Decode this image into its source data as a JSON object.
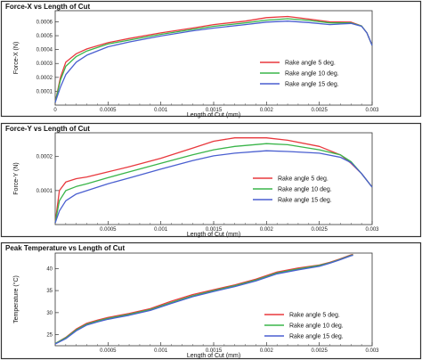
{
  "chart_data": [
    {
      "type": "line",
      "title": "Force-X vs Length of Cut",
      "xlabel": "Length of Cut (mm)",
      "ylabel": "Force-X (N)",
      "xlim": [
        0,
        0.003
      ],
      "ylim": [
        0,
        0.00068
      ],
      "xticks": [
        {
          "v": 0,
          "label": "0"
        },
        {
          "v": 0.0005,
          "label": "0.0005"
        },
        {
          "v": 0.001,
          "label": "0.001"
        },
        {
          "v": 0.0015,
          "label": "0.0015"
        },
        {
          "v": 0.002,
          "label": "0.002"
        },
        {
          "v": 0.0025,
          "label": "0.0025"
        },
        {
          "v": 0.003,
          "label": "0.003"
        }
      ],
      "yticks": [
        {
          "v": 0.0001,
          "label": "0.0001"
        },
        {
          "v": 0.0002,
          "label": "0.0002"
        },
        {
          "v": 0.0003,
          "label": "0.0003"
        },
        {
          "v": 0.0004,
          "label": "0.0004"
        },
        {
          "v": 0.0005,
          "label": "0.0005"
        },
        {
          "v": 0.0006,
          "label": "0.0006"
        }
      ],
      "legend_position": "center-right",
      "series": [
        {
          "name": "Rake angle 5 deg.",
          "color": "#e8383d",
          "x": [
            0,
            5e-05,
            0.0001,
            0.0002,
            0.0003,
            0.0005,
            0.0007,
            0.001,
            0.0013,
            0.0015,
            0.0018,
            0.002,
            0.0022,
            0.0024,
            0.0026,
            0.0028,
            0.0029,
            0.00295,
            0.003
          ],
          "y": [
            2e-05,
            0.0002,
            0.00031,
            0.00037,
            0.000405,
            0.00045,
            0.00048,
            0.00052,
            0.000555,
            0.00058,
            0.000605,
            0.00063,
            0.000638,
            0.00062,
            0.0006,
            0.000598,
            0.00057,
            0.00052,
            0.00043
          ]
        },
        {
          "name": "Rake angle 10 deg.",
          "color": "#3ab54a",
          "x": [
            0,
            5e-05,
            0.0001,
            0.0002,
            0.0003,
            0.0005,
            0.0007,
            0.001,
            0.0013,
            0.0015,
            0.0018,
            0.002,
            0.0022,
            0.0024,
            0.0026,
            0.0028,
            0.0029,
            0.00295,
            0.003
          ],
          "y": [
            2e-05,
            0.00018,
            0.00028,
            0.00035,
            0.00039,
            0.00044,
            0.000468,
            0.00051,
            0.000545,
            0.000568,
            0.000592,
            0.000612,
            0.000622,
            0.00061,
            0.000592,
            0.000592,
            0.00057,
            0.00052,
            0.00043
          ]
        },
        {
          "name": "Rake angle 15 deg.",
          "color": "#4a5fd0",
          "x": [
            0,
            5e-05,
            0.0001,
            0.0002,
            0.0003,
            0.0005,
            0.0007,
            0.001,
            0.0013,
            0.0015,
            0.0018,
            0.002,
            0.0022,
            0.0024,
            0.0026,
            0.0028,
            0.0029,
            0.00295,
            0.003
          ],
          "y": [
            2e-05,
            0.00013,
            0.00022,
            0.00031,
            0.00036,
            0.00042,
            0.000455,
            0.000498,
            0.000535,
            0.000555,
            0.00058,
            0.000598,
            0.000605,
            0.000595,
            0.00058,
            0.000588,
            0.000568,
            0.00052,
            0.00043
          ]
        }
      ]
    },
    {
      "type": "line",
      "title": "Force-Y vs Length of Cut",
      "xlabel": "Length of Cut (mm)",
      "ylabel": "Force-Y (N)",
      "xlim": [
        0,
        0.003
      ],
      "ylim": [
        0,
        0.00027
      ],
      "xticks": [
        {
          "v": 0.0005,
          "label": "0.0005"
        },
        {
          "v": 0.001,
          "label": "0.001"
        },
        {
          "v": 0.0015,
          "label": "0.0015"
        },
        {
          "v": 0.002,
          "label": "0.002"
        },
        {
          "v": 0.0025,
          "label": "0.0025"
        },
        {
          "v": 0.003,
          "label": "0.003"
        }
      ],
      "yticks": [
        {
          "v": 0.0001,
          "label": "0.0001"
        },
        {
          "v": 0.0002,
          "label": "0.0002"
        }
      ],
      "legend_position": "center-right",
      "series": [
        {
          "name": "Rake angle 5 deg.",
          "color": "#e8383d",
          "x": [
            0,
            4e-05,
            0.0001,
            0.0002,
            0.0003,
            0.0005,
            0.0007,
            0.001,
            0.0013,
            0.0015,
            0.0017,
            0.002,
            0.0022,
            0.0025,
            0.0027,
            0.0028,
            0.0029,
            0.003
          ],
          "y": [
            5e-06,
            0.0001,
            0.000125,
            0.000135,
            0.00014,
            0.000155,
            0.00017,
            0.000195,
            0.000225,
            0.000245,
            0.000255,
            0.000255,
            0.000248,
            0.00023,
            0.000205,
            0.00018,
            0.00015,
            0.00011
          ]
        },
        {
          "name": "Rake angle 10 deg.",
          "color": "#3ab54a",
          "x": [
            0,
            4e-05,
            0.0001,
            0.0002,
            0.0003,
            0.0005,
            0.0007,
            0.001,
            0.0013,
            0.0015,
            0.0017,
            0.002,
            0.0022,
            0.0025,
            0.0027,
            0.0028,
            0.0029,
            0.003
          ],
          "y": [
            5e-06,
            7e-05,
            0.0001,
            0.000112,
            0.00012,
            0.000138,
            0.000155,
            0.00018,
            0.000205,
            0.00022,
            0.00023,
            0.000238,
            0.000235,
            0.00022,
            0.000205,
            0.000185,
            0.00015,
            0.00011
          ]
        },
        {
          "name": "Rake angle 15 deg.",
          "color": "#4a5fd0",
          "x": [
            0,
            4e-05,
            0.0001,
            0.0002,
            0.0003,
            0.0005,
            0.0007,
            0.001,
            0.0013,
            0.0015,
            0.0017,
            0.002,
            0.0022,
            0.0025,
            0.0027,
            0.0028,
            0.0029,
            0.003
          ],
          "y": [
            5e-06,
            4e-05,
            7e-05,
            9e-05,
            0.0001,
            0.00012,
            0.000137,
            0.000163,
            0.000188,
            0.000202,
            0.00021,
            0.000217,
            0.000215,
            0.00021,
            0.000198,
            0.000182,
            0.00015,
            0.00011
          ]
        }
      ]
    },
    {
      "type": "line",
      "title": "Peak Temperature vs Length of Cut",
      "xlabel": "Length of Cut (mm)",
      "ylabel": "Temperature (°C)",
      "xlim": [
        0,
        0.003
      ],
      "ylim": [
        22.5,
        43.5
      ],
      "xticks": [
        {
          "v": 0.0005,
          "label": "0.0005"
        },
        {
          "v": 0.001,
          "label": "0.001"
        },
        {
          "v": 0.0015,
          "label": "0.0015"
        },
        {
          "v": 0.002,
          "label": "0.002"
        },
        {
          "v": 0.0025,
          "label": "0.0025"
        },
        {
          "v": 0.003,
          "label": "0.003"
        }
      ],
      "yticks": [
        {
          "v": 25,
          "label": "25"
        },
        {
          "v": 30,
          "label": "30"
        },
        {
          "v": 35,
          "label": "35"
        },
        {
          "v": 40,
          "label": "40"
        }
      ],
      "legend_position": "bottom-right",
      "series": [
        {
          "name": "Rake angle 5 deg.",
          "color": "#e8383d",
          "x": [
            0,
            0.0001,
            0.0002,
            0.0003,
            0.0004,
            0.0005,
            0.0007,
            0.0009,
            0.0011,
            0.0013,
            0.0015,
            0.0017,
            0.0019,
            0.0021,
            0.0023,
            0.0025,
            0.0026,
            0.0027,
            0.0028,
            0.00282
          ],
          "y": [
            23,
            24.4,
            26.3,
            27.6,
            28.3,
            28.9,
            29.8,
            30.9,
            32.6,
            34.1,
            35.2,
            36.3,
            37.6,
            39.2,
            40.1,
            40.8,
            41.4,
            42.2,
            43.1,
            43.2
          ]
        },
        {
          "name": "Rake angle 10 deg.",
          "color": "#3ab54a",
          "x": [
            0,
            0.0001,
            0.0002,
            0.0003,
            0.0004,
            0.0005,
            0.0007,
            0.0009,
            0.0011,
            0.0013,
            0.0015,
            0.0017,
            0.0019,
            0.0021,
            0.0023,
            0.0025,
            0.0026,
            0.0027,
            0.0028,
            0.00282
          ],
          "y": [
            23,
            24.3,
            26.1,
            27.4,
            28.1,
            28.7,
            29.6,
            30.7,
            32.3,
            33.8,
            35,
            36.1,
            37.4,
            39,
            39.9,
            40.7,
            41.3,
            42.1,
            43,
            43.1
          ]
        },
        {
          "name": "Rake angle 15 deg.",
          "color": "#4a5fd0",
          "x": [
            0,
            0.0001,
            0.0002,
            0.0003,
            0.0004,
            0.0005,
            0.0007,
            0.0009,
            0.0011,
            0.0013,
            0.0015,
            0.0017,
            0.0019,
            0.0021,
            0.0023,
            0.0025,
            0.0026,
            0.0027,
            0.0028,
            0.00282
          ],
          "y": [
            22.9,
            24.1,
            25.9,
            27.2,
            27.9,
            28.5,
            29.4,
            30.5,
            32.1,
            33.6,
            34.8,
            35.9,
            37.2,
            38.8,
            39.7,
            40.5,
            41.2,
            42,
            42.9,
            43
          ]
        }
      ]
    }
  ]
}
